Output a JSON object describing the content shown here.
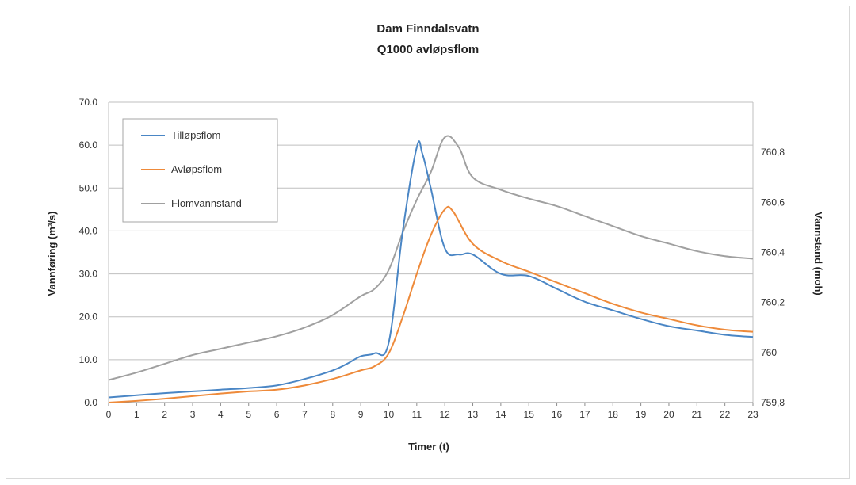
{
  "chart_data": {
    "type": "line",
    "title": [
      "Dam Finndalsvatn",
      "Q1000 avløpsflom"
    ],
    "xlabel": "Timer (t)",
    "ylabel": "Vannføring (m³/s)",
    "y2label": "Vannstand (moh)",
    "x": [
      0,
      1,
      2,
      3,
      4,
      5,
      6,
      7,
      8,
      9,
      10,
      11,
      12,
      13,
      14,
      15,
      16,
      17,
      18,
      19,
      20,
      21,
      22,
      23
    ],
    "xlim": [
      0,
      23
    ],
    "ylim": [
      0,
      70
    ],
    "y2lim": [
      759.8,
      761.0
    ],
    "y_ticks": [
      "0.0",
      "10.0",
      "20.0",
      "30.0",
      "40.0",
      "50.0",
      "60.0",
      "70.0"
    ],
    "y2_ticks": [
      "759,8",
      "760",
      "760,2",
      "760,4",
      "760,6",
      "760,8"
    ],
    "x_ticks": [
      "0",
      "1",
      "2",
      "3",
      "4",
      "5",
      "6",
      "7",
      "8",
      "9",
      "10",
      "11",
      "12",
      "13",
      "14",
      "15",
      "16",
      "17",
      "18",
      "19",
      "20",
      "21",
      "22",
      "23"
    ],
    "grid": true,
    "legend_position": "top-left",
    "series": [
      {
        "name": "Tilløpsflom",
        "axis": "left",
        "color": "#4a86c5",
        "points": [
          [
            0,
            1.2
          ],
          [
            1,
            1.7
          ],
          [
            2,
            2.2
          ],
          [
            3,
            2.6
          ],
          [
            4,
            3.0
          ],
          [
            5,
            3.4
          ],
          [
            6,
            4.0
          ],
          [
            7,
            5.5
          ],
          [
            8,
            7.5
          ],
          [
            8.5,
            9.0
          ],
          [
            9,
            10.8
          ],
          [
            9.5,
            11.5
          ],
          [
            10,
            14.0
          ],
          [
            10.5,
            40.0
          ],
          [
            11,
            59.5
          ],
          [
            11.2,
            58.0
          ],
          [
            11.5,
            50.0
          ],
          [
            12,
            36.0
          ],
          [
            12.5,
            34.5
          ],
          [
            13,
            34.5
          ],
          [
            14,
            30.0
          ],
          [
            15,
            29.5
          ],
          [
            16,
            26.5
          ],
          [
            17,
            23.5
          ],
          [
            18,
            21.5
          ],
          [
            19,
            19.5
          ],
          [
            20,
            17.8
          ],
          [
            21,
            16.8
          ],
          [
            22,
            15.8
          ],
          [
            23,
            15.3
          ]
        ]
      },
      {
        "name": "Avløpsflom",
        "axis": "left",
        "color": "#ee8a3a",
        "points": [
          [
            0,
            0.0
          ],
          [
            1,
            0.4
          ],
          [
            2,
            0.9
          ],
          [
            3,
            1.5
          ],
          [
            4,
            2.1
          ],
          [
            5,
            2.6
          ],
          [
            6,
            3.0
          ],
          [
            7,
            4.0
          ],
          [
            8,
            5.5
          ],
          [
            9,
            7.5
          ],
          [
            9.5,
            8.5
          ],
          [
            10,
            11.5
          ],
          [
            10.5,
            20.0
          ],
          [
            11,
            30.0
          ],
          [
            11.5,
            39.0
          ],
          [
            12,
            45.0
          ],
          [
            12.3,
            44.5
          ],
          [
            13,
            37.0
          ],
          [
            14,
            33.0
          ],
          [
            15,
            30.5
          ],
          [
            16,
            28.0
          ],
          [
            17,
            25.5
          ],
          [
            18,
            23.0
          ],
          [
            19,
            21.0
          ],
          [
            20,
            19.5
          ],
          [
            21,
            18.0
          ],
          [
            22,
            17.0
          ],
          [
            23,
            16.5
          ]
        ]
      },
      {
        "name": "Flomvannstand",
        "axis": "right",
        "color": "#a0a0a0",
        "points": [
          [
            0,
            759.89
          ],
          [
            1,
            759.92
          ],
          [
            2,
            759.955
          ],
          [
            3,
            759.99
          ],
          [
            4,
            760.015
          ],
          [
            5,
            760.04
          ],
          [
            6,
            760.065
          ],
          [
            7,
            760.1
          ],
          [
            8,
            760.15
          ],
          [
            9,
            760.225
          ],
          [
            9.5,
            760.255
          ],
          [
            10,
            760.33
          ],
          [
            10.5,
            760.48
          ],
          [
            11,
            760.61
          ],
          [
            11.5,
            760.72
          ],
          [
            12,
            760.86
          ],
          [
            12.5,
            760.82
          ],
          [
            13,
            760.7
          ],
          [
            14,
            760.65
          ],
          [
            15,
            760.615
          ],
          [
            16,
            760.585
          ],
          [
            17,
            760.545
          ],
          [
            18,
            760.505
          ],
          [
            19,
            760.465
          ],
          [
            20,
            760.435
          ],
          [
            21,
            760.405
          ],
          [
            22,
            760.385
          ],
          [
            23,
            760.375
          ]
        ]
      }
    ]
  }
}
